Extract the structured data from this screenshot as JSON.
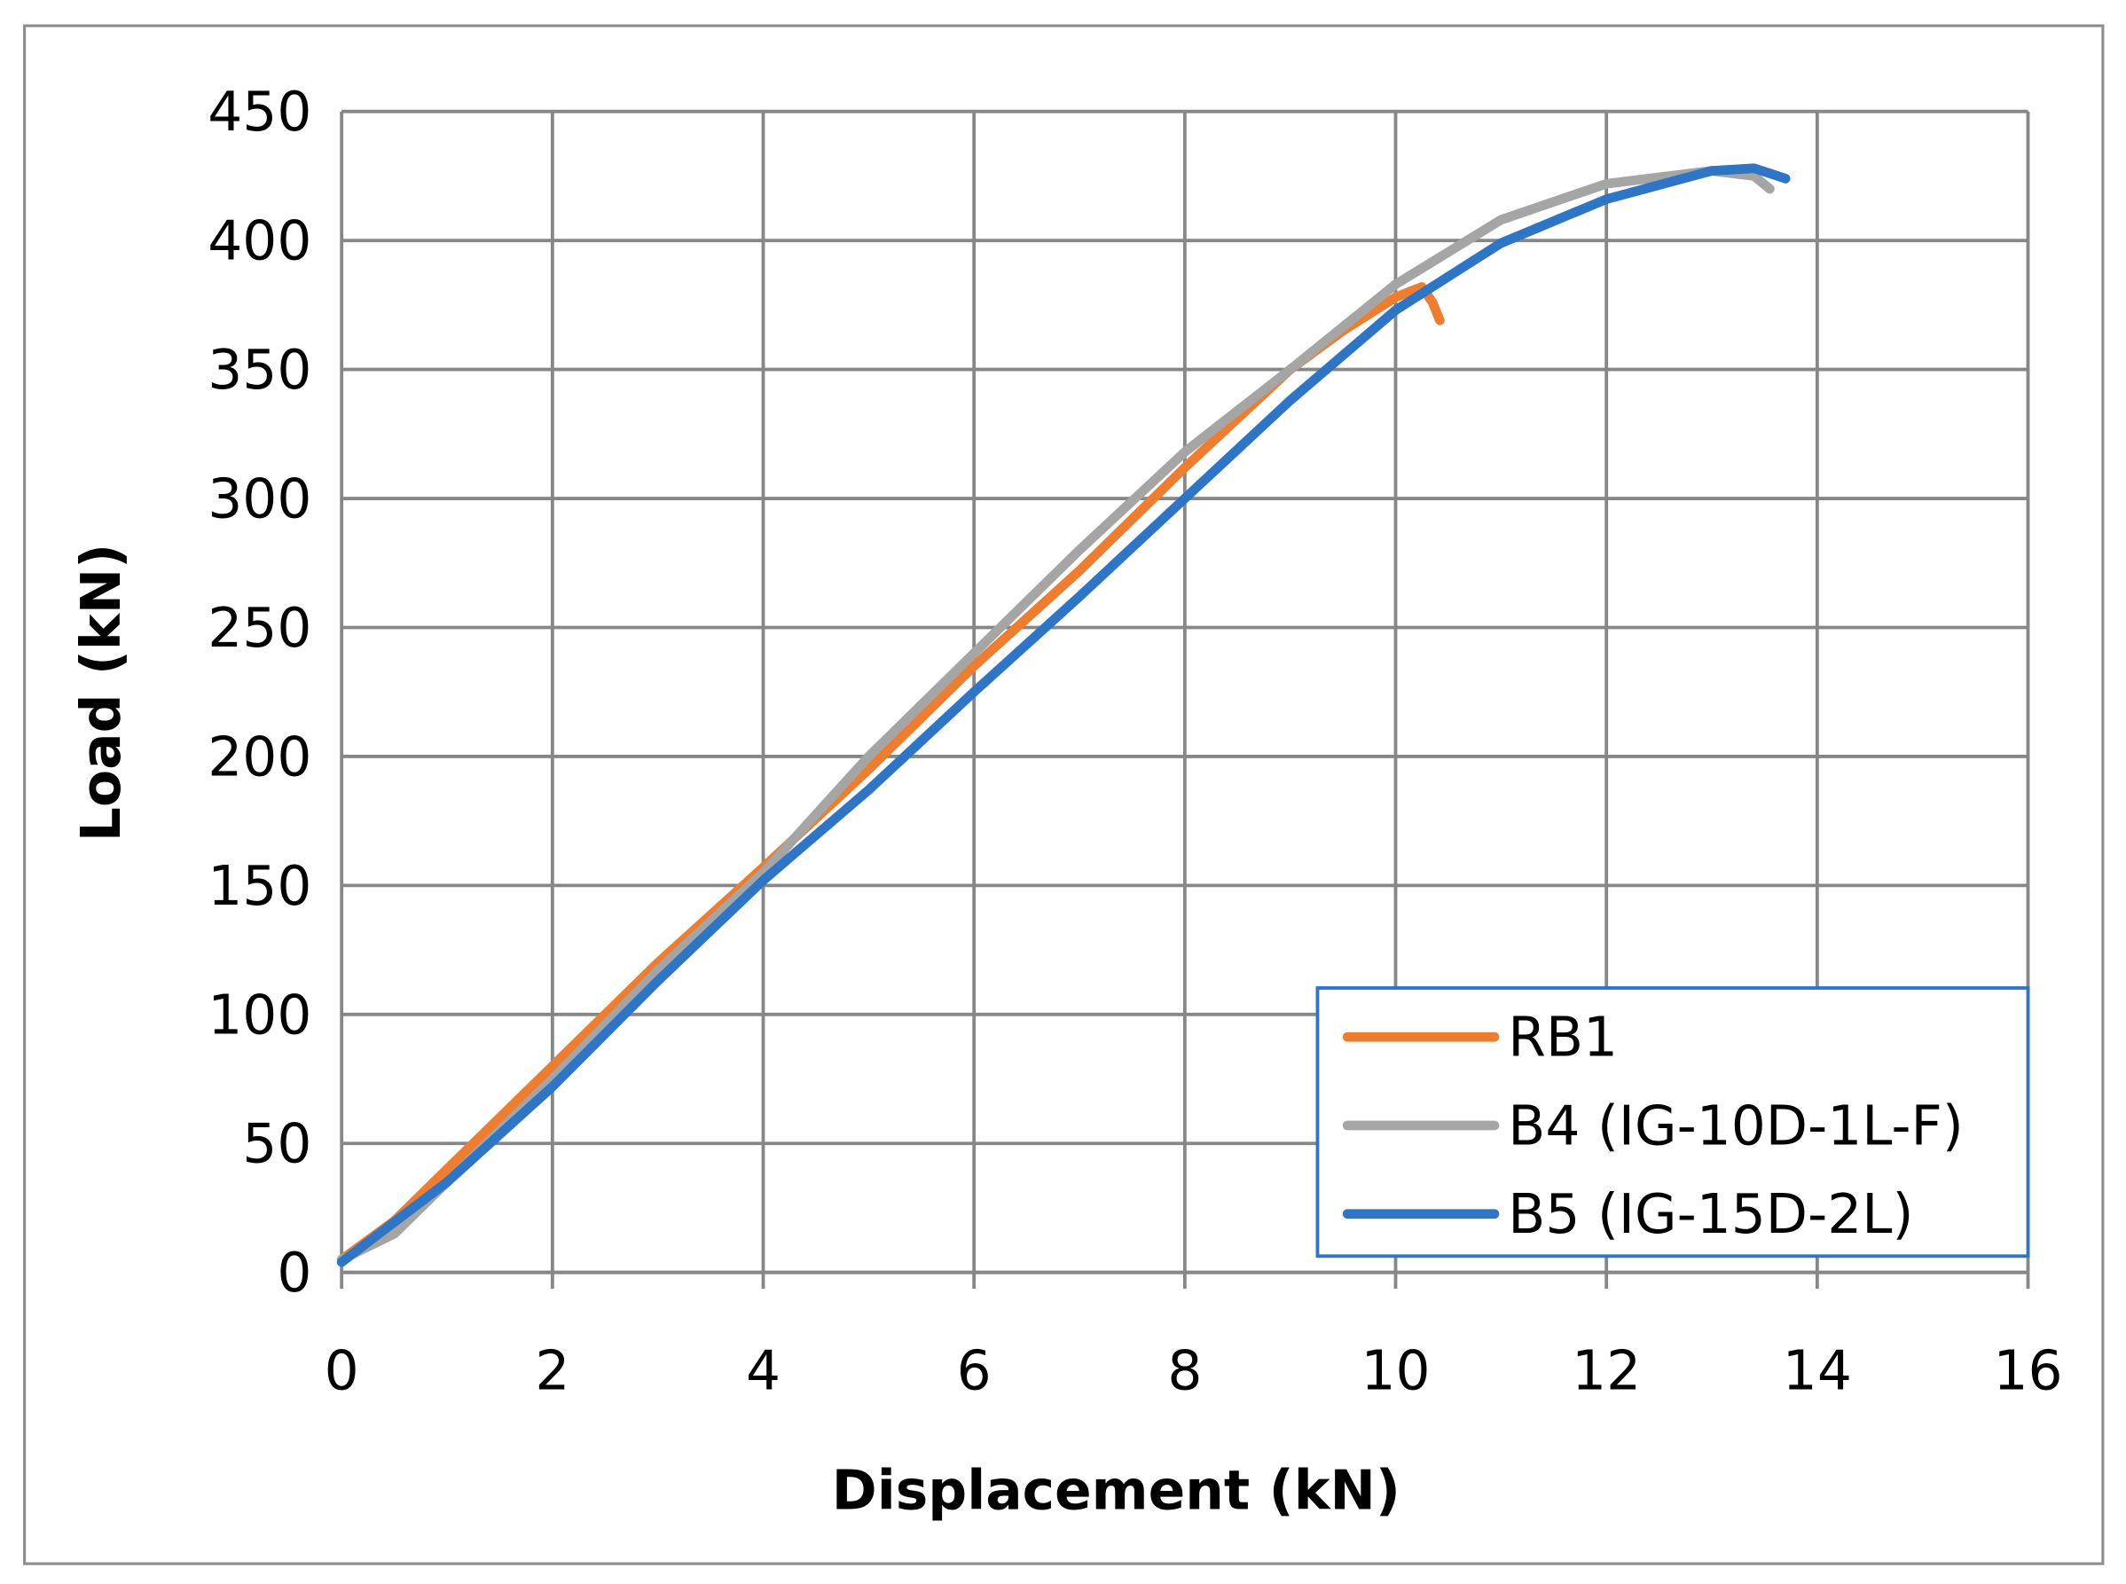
{
  "chart_data": {
    "type": "line",
    "x_label": "Displacement (kN)",
    "y_label": "Load (kN)",
    "xlim": [
      0,
      16
    ],
    "xticks": [
      0,
      2,
      4,
      6,
      8,
      10,
      12,
      14,
      16
    ],
    "ylim": [
      0,
      450
    ],
    "yticks": [
      0,
      50,
      100,
      150,
      200,
      250,
      300,
      350,
      400,
      450
    ],
    "grid": true,
    "legend": "lower right",
    "series": [
      {
        "name": "RB1",
        "color": "#ed7d31",
        "x": [
          0,
          0.5,
          1,
          2,
          3,
          4,
          5,
          6,
          7,
          8,
          9,
          9.5,
          10,
          10.25,
          10.35,
          10.42
        ],
        "values": [
          5,
          20,
          40,
          80,
          120,
          157,
          195,
          235,
          272,
          312,
          350,
          365,
          378,
          382,
          376,
          369
        ]
      },
      {
        "name": "B4 (IG-10D-1L-F)",
        "color": "#a5a5a5",
        "x": [
          0,
          0.5,
          1,
          2,
          3,
          4,
          5,
          6,
          7,
          8,
          9,
          10,
          11,
          12,
          13,
          13.4,
          13.55
        ],
        "values": [
          5,
          15,
          35,
          75,
          117,
          155,
          200,
          240,
          280,
          318,
          350,
          383,
          408,
          422,
          427,
          425,
          420
        ]
      },
      {
        "name": "B5 (IG-15D-2L)",
        "color": "#2e75c6",
        "x": [
          0,
          1,
          2,
          3,
          4,
          5,
          6,
          7,
          8,
          9,
          10,
          11,
          12,
          13,
          13.4,
          13.7
        ],
        "values": [
          4,
          35,
          72,
          113,
          152,
          187,
          225,
          262,
          300,
          338,
          373,
          399,
          416,
          427,
          428,
          424
        ]
      }
    ]
  }
}
